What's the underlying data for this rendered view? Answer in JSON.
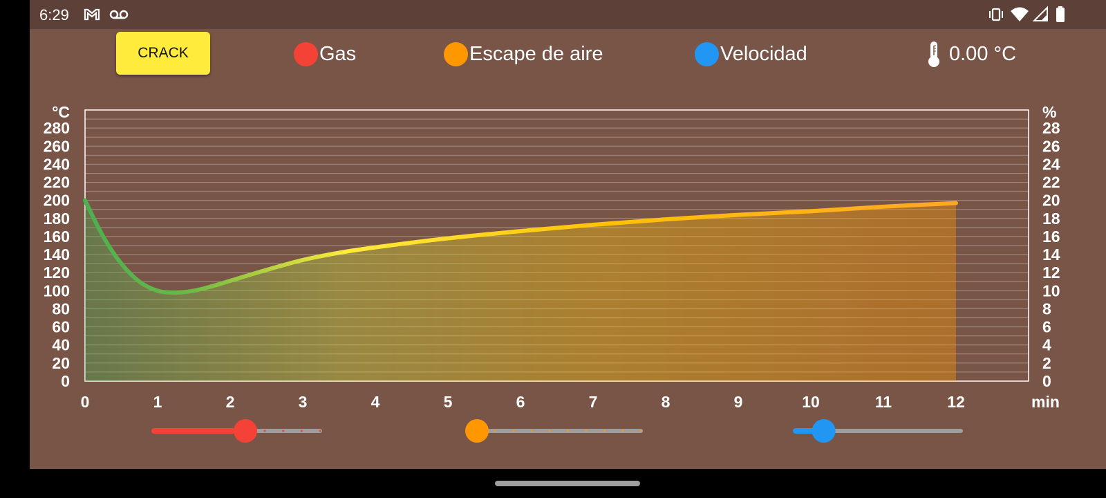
{
  "status_bar": {
    "time": "6:29",
    "icons": [
      "gmail-icon",
      "voicemail-icon",
      "vibrate-icon",
      "wifi-icon",
      "signal-icon",
      "battery-icon"
    ]
  },
  "toolbar": {
    "crack_label": "CRACK"
  },
  "legend": [
    {
      "label": "Gas",
      "color": "#f44336"
    },
    {
      "label": "Escape de aire",
      "color": "#ff9800"
    },
    {
      "label": "Velocidad",
      "color": "#2196f3"
    }
  ],
  "temperature": {
    "icon": "thermometer-icon",
    "value": "0.00 °C"
  },
  "chart_data": {
    "type": "area",
    "y_left_label": "°C",
    "y_right_label": "%",
    "x_label": "min",
    "x_ticks": [
      0,
      1,
      2,
      3,
      4,
      5,
      6,
      7,
      8,
      9,
      10,
      11,
      12
    ],
    "y_left_ticks": [
      0,
      20,
      40,
      60,
      80,
      100,
      120,
      140,
      160,
      180,
      200,
      220,
      240,
      260,
      280
    ],
    "y_right_ticks": [
      0,
      2,
      4,
      6,
      8,
      10,
      12,
      14,
      16,
      18,
      20,
      22,
      24,
      26,
      28
    ],
    "xlim": [
      0,
      13
    ],
    "ylim": [
      0,
      300
    ],
    "grid": true,
    "series": [
      {
        "x": [
          0,
          0.25,
          0.5,
          0.75,
          1,
          1.25,
          1.5,
          1.75,
          2,
          2.5,
          3,
          3.5,
          4,
          5,
          6,
          7,
          8,
          9,
          10,
          11,
          12
        ],
        "values": [
          200,
          160,
          130,
          110,
          100,
          98,
          100,
          105,
          111,
          123,
          134,
          142,
          148,
          158,
          166,
          173,
          179,
          184,
          188,
          193,
          197
        ]
      }
    ],
    "line_gradient": [
      "#4caf50",
      "#8bc34a",
      "#ffeb3b",
      "#ffc107",
      "#ff9800"
    ]
  },
  "sliders": [
    {
      "name": "gas-slider",
      "color": "#f44336",
      "value": 0.55,
      "ticks": 10
    },
    {
      "name": "air-escape-slider",
      "color": "#ff9800",
      "value": 0.0,
      "ticks": 10
    },
    {
      "name": "speed-slider",
      "color": "#2196f3",
      "value": 0.17,
      "ticks": 0
    }
  ]
}
